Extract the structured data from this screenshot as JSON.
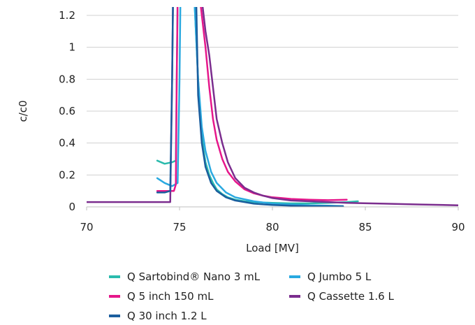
{
  "chart_data": {
    "type": "line",
    "title": "",
    "xlabel": "Load [MV]",
    "ylabel": "c/c0",
    "xlim": [
      70,
      90
    ],
    "ylim": [
      0,
      1.2
    ],
    "x_ticks": [
      70,
      75,
      80,
      85,
      90
    ],
    "y_ticks": [
      0,
      0.2,
      0.4,
      0.6,
      0.8,
      1,
      1.2
    ],
    "x_tick_labels": [
      "70",
      "75",
      "80",
      "85",
      "90"
    ],
    "y_tick_labels": [
      "0",
      "0.2",
      "0.4",
      "0.6",
      "0.8",
      "1",
      "1.2"
    ],
    "grid": "horizontal",
    "legend_position": "bottom",
    "series": [
      {
        "name": "Q Sartobind® Nano 3 mL",
        "color": "#2bbbad",
        "x": [
          73.8,
          74.2,
          74.6,
          74.8,
          74.85,
          74.9,
          75.8,
          76.0,
          76.1,
          76.2,
          76.3,
          76.4,
          76.6,
          76.8,
          77.0,
          77.3,
          77.6,
          78.0,
          78.5,
          79.0,
          80.0,
          81.0,
          82.0,
          83.0,
          84.0,
          84.6
        ],
        "y": [
          0.29,
          0.27,
          0.28,
          0.29,
          0.8,
          1.3,
          1.3,
          0.8,
          0.6,
          0.45,
          0.35,
          0.28,
          0.2,
          0.15,
          0.11,
          0.08,
          0.06,
          0.045,
          0.035,
          0.03,
          0.025,
          0.022,
          0.022,
          0.025,
          0.03,
          0.035
        ]
      },
      {
        "name": "Q Jumbo 5 L",
        "color": "#29a9e0",
        "x": [
          73.8,
          74.2,
          74.6,
          74.9,
          75.0,
          75.05,
          75.8,
          76.0,
          76.2,
          76.4,
          76.7,
          77.0,
          77.5,
          78.0,
          79.0,
          80.0,
          81.0,
          82.0,
          83.0,
          83.8
        ],
        "y": [
          0.18,
          0.15,
          0.13,
          0.15,
          0.8,
          1.3,
          1.3,
          0.8,
          0.5,
          0.35,
          0.22,
          0.15,
          0.09,
          0.06,
          0.035,
          0.02,
          0.015,
          0.01,
          0.008,
          0.005
        ]
      },
      {
        "name": "Q 5 inch 150 mL",
        "color": "#e6178b",
        "x": [
          73.8,
          74.2,
          74.7,
          74.8,
          74.85,
          74.9,
          76.1,
          76.4,
          76.6,
          76.8,
          77.0,
          77.3,
          77.6,
          78.0,
          78.5,
          79.0,
          79.5,
          80.0,
          80.5,
          81.0,
          82.0,
          83.0,
          84.0
        ],
        "y": [
          0.1,
          0.1,
          0.1,
          0.14,
          0.8,
          1.3,
          1.3,
          1.0,
          0.75,
          0.55,
          0.42,
          0.3,
          0.22,
          0.16,
          0.11,
          0.085,
          0.07,
          0.06,
          0.055,
          0.05,
          0.045,
          0.042,
          0.045
        ]
      },
      {
        "name": "Q Cassette 1.6 L",
        "color": "#7b2d8e",
        "x": [
          70.0,
          72.0,
          74.0,
          74.5,
          74.6,
          74.65,
          76.2,
          76.4,
          76.6,
          76.8,
          77.0,
          77.3,
          77.6,
          78.0,
          78.5,
          79.0,
          79.5,
          80.0,
          81.0,
          82.0,
          83.0,
          84.0,
          86.0,
          88.0,
          90.0
        ],
        "y": [
          0.03,
          0.03,
          0.03,
          0.03,
          0.8,
          1.3,
          1.3,
          1.1,
          0.95,
          0.75,
          0.55,
          0.4,
          0.28,
          0.18,
          0.12,
          0.09,
          0.07,
          0.055,
          0.04,
          0.035,
          0.03,
          0.025,
          0.02,
          0.015,
          0.01
        ]
      },
      {
        "name": "Q 30 inch 1.2 L",
        "color": "#1b5e9e",
        "x": [
          73.8,
          74.2,
          74.5,
          74.6,
          74.65,
          75.9,
          76.0,
          76.2,
          76.4,
          76.7,
          77.0,
          77.5,
          78.0,
          79.0,
          80.0,
          81.0,
          82.0,
          83.0,
          83.8
        ],
        "y": [
          0.09,
          0.09,
          0.1,
          0.8,
          1.3,
          1.3,
          0.7,
          0.4,
          0.25,
          0.15,
          0.1,
          0.06,
          0.04,
          0.02,
          0.012,
          0.008,
          0.005,
          0.004,
          0.003
        ]
      }
    ]
  }
}
